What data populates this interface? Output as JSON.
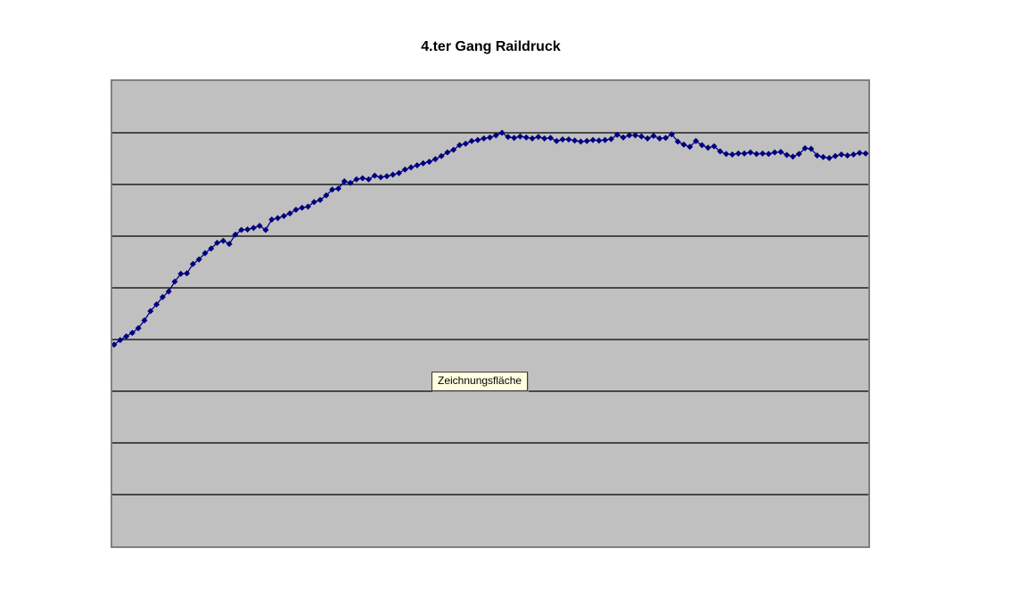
{
  "page": {
    "background_color": "#FFFFFF"
  },
  "chart": {
    "title": "4.ter Gang Raildruck",
    "tooltip": "Zeichnungsfläche"
  },
  "chart_data": {
    "type": "line",
    "title": "4.ter Gang Raildruck",
    "xlabel": "",
    "ylabel": "",
    "axis_tick_labels_visible": false,
    "legend": "none",
    "grid": "horizontal",
    "gridline_count": 8,
    "gridline_color": "#000000",
    "plot_bg_color": "#C0C0C0",
    "plot_border_color": "#808080",
    "ylim": [
      0,
      9
    ],
    "y_unit_note": "no axis labels visible; values measured in gridline bands above plot bottom (9 equal bands)",
    "series": [
      {
        "name": "Raildruck",
        "color": "#000080",
        "marker": "diamond",
        "marker_size": 7,
        "values": [
          3.9,
          3.99,
          4.06,
          4.13,
          4.22,
          4.37,
          4.55,
          4.68,
          4.82,
          4.93,
          5.12,
          5.27,
          5.28,
          5.46,
          5.55,
          5.67,
          5.76,
          5.87,
          5.91,
          5.85,
          6.03,
          6.12,
          6.13,
          6.16,
          6.2,
          6.12,
          6.32,
          6.35,
          6.39,
          6.44,
          6.51,
          6.55,
          6.57,
          6.66,
          6.7,
          6.79,
          6.9,
          6.92,
          7.06,
          7.03,
          7.1,
          7.12,
          7.1,
          7.17,
          7.14,
          7.16,
          7.19,
          7.22,
          7.29,
          7.33,
          7.37,
          7.41,
          7.44,
          7.49,
          7.55,
          7.62,
          7.67,
          7.76,
          7.79,
          7.84,
          7.86,
          7.89,
          7.91,
          7.95,
          8.0,
          7.92,
          7.9,
          7.93,
          7.91,
          7.89,
          7.92,
          7.89,
          7.9,
          7.84,
          7.87,
          7.87,
          7.85,
          7.83,
          7.84,
          7.86,
          7.85,
          7.86,
          7.88,
          7.96,
          7.91,
          7.95,
          7.95,
          7.93,
          7.89,
          7.94,
          7.89,
          7.9,
          7.97,
          7.83,
          7.77,
          7.73,
          7.84,
          7.76,
          7.71,
          7.74,
          7.64,
          7.59,
          7.58,
          7.6,
          7.6,
          7.62,
          7.59,
          7.6,
          7.59,
          7.62,
          7.63,
          7.57,
          7.54,
          7.59,
          7.7,
          7.69,
          7.56,
          7.53,
          7.51,
          7.55,
          7.58,
          7.56,
          7.58,
          7.61,
          7.6
        ]
      }
    ]
  }
}
